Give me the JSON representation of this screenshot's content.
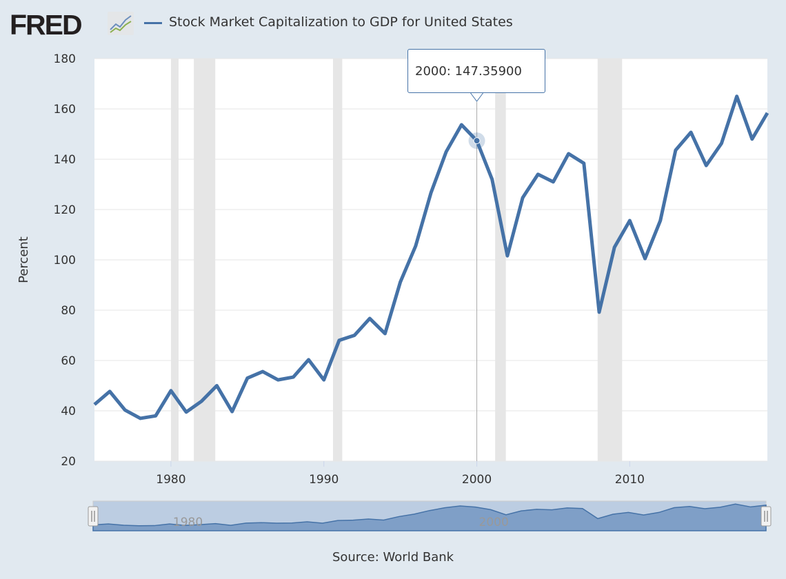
{
  "header": {
    "logo": "FRED",
    "series_title": "Stock Market Capitalization to GDP for United States"
  },
  "colors": {
    "series": "#4572a7",
    "recession": "#e6e6e6",
    "background": "#e1e9f0",
    "navigator_fill": "#7f9fc7"
  },
  "tooltip": {
    "text": "2000: 147.35900"
  },
  "source": "Source: World Bank",
  "navigator": {
    "tick_labels": [
      "1980",
      "2000"
    ]
  },
  "chart_data": {
    "type": "line",
    "title": "Stock Market Capitalization to GDP for United States",
    "xlabel": "",
    "ylabel": "Percent",
    "xlim": [
      1975,
      2019
    ],
    "ylim": [
      20,
      180
    ],
    "yticks": [
      20,
      40,
      60,
      80,
      100,
      120,
      140,
      160,
      180
    ],
    "xticks": [
      1980,
      1990,
      2000,
      2010
    ],
    "grid": true,
    "recessions": [
      [
        1980.0,
        1980.5
      ],
      [
        1981.5,
        1982.9
      ],
      [
        1990.6,
        1991.2
      ],
      [
        2001.2,
        2001.9
      ],
      [
        2007.9,
        2009.5
      ]
    ],
    "highlight": {
      "x": 2000,
      "y": 147.359
    },
    "x": [
      1975,
      1976,
      1977,
      1978,
      1979,
      1980,
      1981,
      1982,
      1983,
      1984,
      1985,
      1986,
      1987,
      1988,
      1989,
      1990,
      1991,
      1992,
      1993,
      1994,
      1995,
      1996,
      1997,
      1998,
      1999,
      2000,
      2001,
      2002,
      2003,
      2004,
      2005,
      2006,
      2007,
      2008,
      2009,
      2010,
      2011,
      2012,
      2013,
      2014,
      2015,
      2016,
      2017,
      2018,
      2019
    ],
    "series": [
      {
        "name": "Stock Market Capitalization to GDP for United States",
        "values": [
          42.5,
          47.7,
          40.3,
          37.0,
          38.0,
          48.0,
          39.5,
          43.8,
          50.0,
          39.7,
          53.0,
          55.6,
          52.3,
          53.4,
          60.3,
          52.3,
          68.0,
          70.0,
          76.7,
          70.7,
          91.2,
          105.5,
          126.6,
          143.0,
          153.7,
          147.359,
          132.0,
          101.6,
          124.7,
          134.0,
          131.0,
          142.2,
          138.4,
          79.2,
          105.0,
          115.6,
          100.5,
          115.6,
          143.6,
          150.7,
          137.5,
          146.3,
          165.0,
          148.0,
          158.4
        ]
      }
    ]
  }
}
